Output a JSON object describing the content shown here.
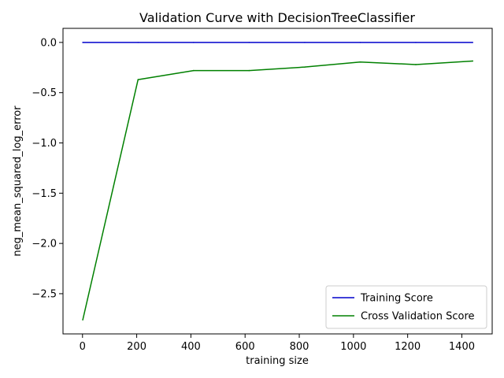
{
  "chart_data": {
    "type": "line",
    "title": "Validation Curve with DecisionTreeClassifier",
    "xlabel": "training size",
    "ylabel": "neg_mean_squared_log_error",
    "xlim": [
      -72,
      1512
    ],
    "ylim": [
      -2.9,
      0.14
    ],
    "x_ticks": [
      0,
      200,
      400,
      600,
      800,
      1000,
      1200,
      1400
    ],
    "x_tick_labels": [
      "0",
      "200",
      "400",
      "600",
      "800",
      "1000",
      "1200",
      "1400"
    ],
    "y_ticks": [
      0.0,
      -0.5,
      -1.0,
      -1.5,
      -2.0,
      -2.5
    ],
    "y_tick_labels": [
      "0.0",
      "−0.5",
      "−1.0",
      "−1.5",
      "−2.0",
      "−2.5"
    ],
    "grid": false,
    "legend_position": "lower-right",
    "series": [
      {
        "name": "Training Score",
        "color": "#0000cc",
        "x": [
          1,
          205,
          410,
          615,
          820,
          1025,
          1230,
          1440
        ],
        "y": [
          0,
          0,
          0,
          0,
          0,
          0,
          0,
          0
        ]
      },
      {
        "name": "Cross Validation Score",
        "color": "#008000",
        "x": [
          1,
          205,
          410,
          615,
          820,
          1025,
          1230,
          1440
        ],
        "y": [
          -2.76,
          -0.37,
          -0.28,
          -0.28,
          -0.245,
          -0.195,
          -0.22,
          -0.185
        ]
      }
    ]
  }
}
